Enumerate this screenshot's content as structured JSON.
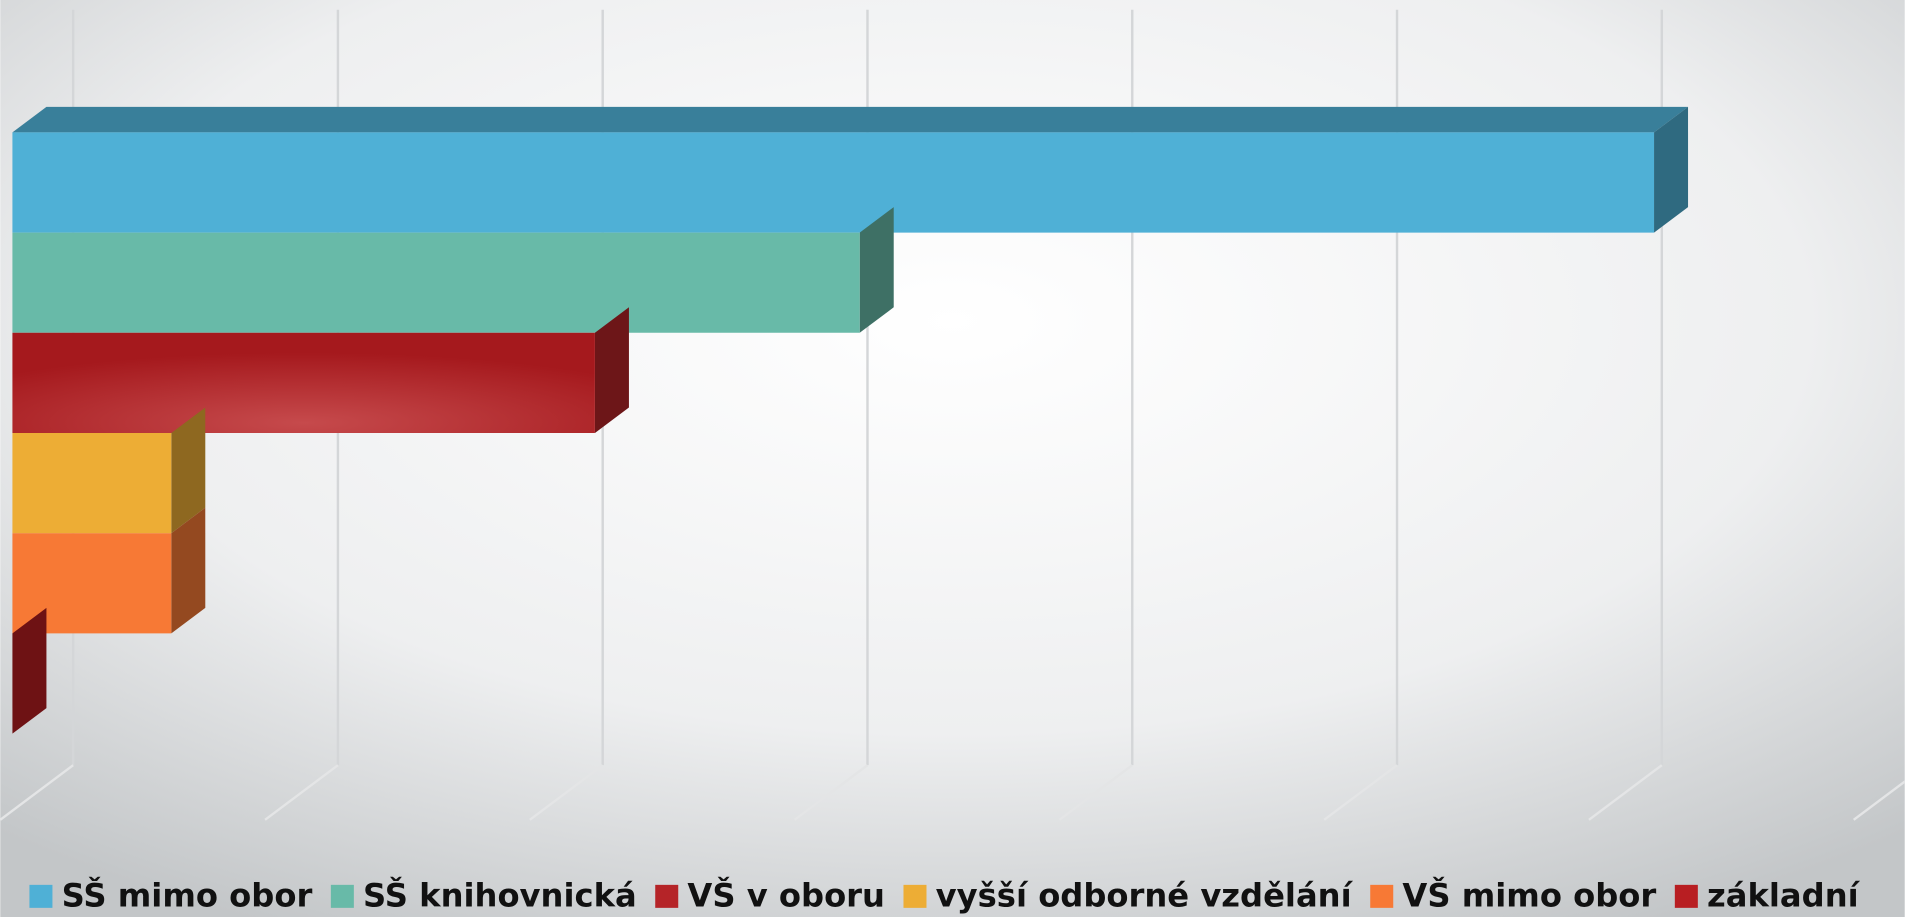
{
  "chart_data": {
    "type": "bar3d",
    "orientation": "horizontal",
    "series": [
      {
        "name": "SŠ mimo obor",
        "color": "#4fb0d6",
        "values": [
          6.2
        ]
      },
      {
        "name": "SŠ knihovnická",
        "color": "#68baa8",
        "values": [
          3.2
        ]
      },
      {
        "name": "VŠ v oboru",
        "color": "#b52428",
        "values": [
          2.2
        ]
      },
      {
        "name": "vyšší odborné vzdělání",
        "color": "#edad35",
        "values": [
          0.6
        ]
      },
      {
        "name": "VŠ mimo obor",
        "color": "#f77935",
        "values": [
          0.6
        ]
      },
      {
        "name": "základní",
        "color": "#b81e22",
        "values": [
          0
        ]
      }
    ],
    "xlim": [
      0,
      7
    ],
    "xticks": [
      0,
      1,
      2,
      3,
      4,
      5,
      6,
      7
    ],
    "grid": true,
    "legend": "bottom"
  }
}
